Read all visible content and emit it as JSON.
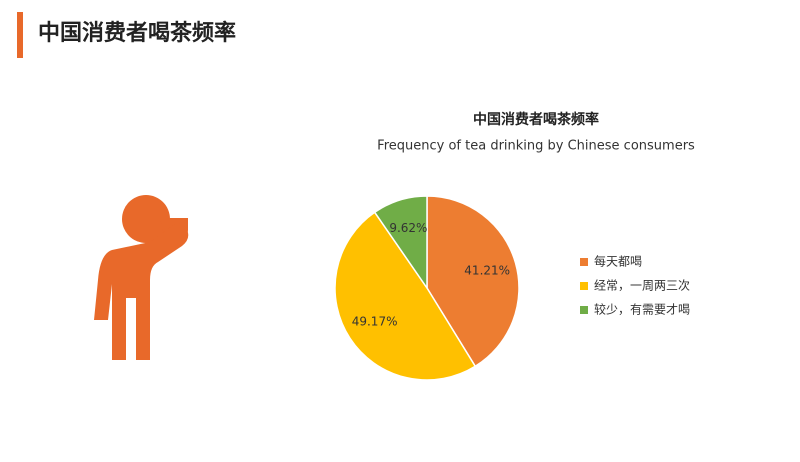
{
  "slide_title": "中国消费者喝茶频率",
  "chart_data": {
    "type": "pie",
    "title": "中国消费者喝茶频率",
    "subtitle": "Frequency of tea drinking by Chinese consumers",
    "categories": [
      "每天都喝",
      "经常，一周两三次",
      "较少，有需要才喝"
    ],
    "values": [
      41.21,
      49.17,
      9.62
    ],
    "value_labels": [
      "41.21%",
      "49.17%",
      "9.62%"
    ],
    "colors": [
      "#ed7d31",
      "#ffc000",
      "#70ad47"
    ],
    "legend": "right"
  }
}
